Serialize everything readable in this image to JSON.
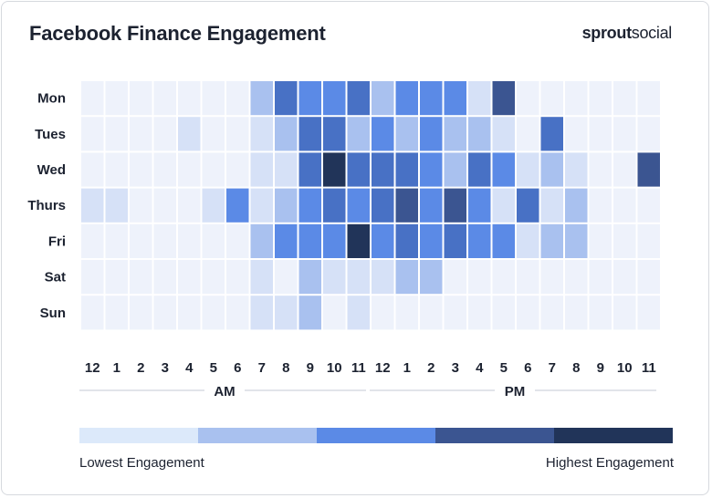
{
  "header": {
    "title": "Facebook Finance Engagement",
    "brand_bold": "sprout",
    "brand_regular": "social"
  },
  "chart_data": {
    "type": "heatmap",
    "title": "Facebook Finance Engagement",
    "rows": [
      "Mon",
      "Tues",
      "Wed",
      "Thurs",
      "Fri",
      "Sat",
      "Sun"
    ],
    "columns": [
      "12",
      "1",
      "2",
      "3",
      "4",
      "5",
      "6",
      "7",
      "8",
      "9",
      "10",
      "11",
      "12",
      "1",
      "2",
      "3",
      "4",
      "5",
      "6",
      "7",
      "8",
      "9",
      "10",
      "11"
    ],
    "column_groups": [
      {
        "label": "AM",
        "start": 0,
        "end": 11
      },
      {
        "label": "PM",
        "start": 12,
        "end": 23
      }
    ],
    "levels": 6,
    "values": [
      [
        0,
        0,
        0,
        0,
        0,
        0,
        0,
        2,
        4,
        3,
        3,
        4,
        2,
        3,
        3,
        3,
        1,
        5,
        0,
        0,
        0,
        0,
        0,
        0
      ],
      [
        0,
        0,
        0,
        0,
        1,
        0,
        0,
        1,
        2,
        4,
        4,
        2,
        3,
        2,
        3,
        2,
        2,
        1,
        0,
        4,
        0,
        0,
        0,
        0
      ],
      [
        0,
        0,
        0,
        0,
        0,
        0,
        0,
        1,
        1,
        4,
        6,
        4,
        4,
        4,
        3,
        2,
        4,
        3,
        1,
        2,
        1,
        0,
        0,
        5
      ],
      [
        1,
        1,
        0,
        0,
        0,
        1,
        3,
        1,
        2,
        3,
        4,
        3,
        4,
        5,
        3,
        5,
        3,
        1,
        4,
        1,
        2,
        0,
        0,
        0
      ],
      [
        0,
        0,
        0,
        0,
        0,
        0,
        0,
        2,
        3,
        3,
        3,
        6,
        3,
        4,
        3,
        4,
        3,
        3,
        1,
        2,
        2,
        0,
        0,
        0
      ],
      [
        0,
        0,
        0,
        0,
        0,
        0,
        0,
        1,
        0,
        2,
        1,
        1,
        1,
        2,
        2,
        0,
        0,
        0,
        0,
        0,
        0,
        0,
        0,
        0
      ],
      [
        0,
        0,
        0,
        0,
        0,
        0,
        0,
        1,
        1,
        2,
        0,
        1,
        0,
        0,
        0,
        0,
        0,
        0,
        0,
        0,
        0,
        0,
        0,
        0
      ]
    ],
    "palette": [
      "#eef2fb",
      "#d6e1f7",
      "#a9c1ef",
      "#5b8ae6",
      "#4871c5",
      "#3b5591",
      "#213459"
    ],
    "legend": {
      "low_label": "Lowest Engagement",
      "high_label": "Highest Engagement",
      "colors": [
        "#dce9fa",
        "#a9c1ef",
        "#5b8ae6",
        "#3b5591",
        "#213459"
      ]
    }
  }
}
